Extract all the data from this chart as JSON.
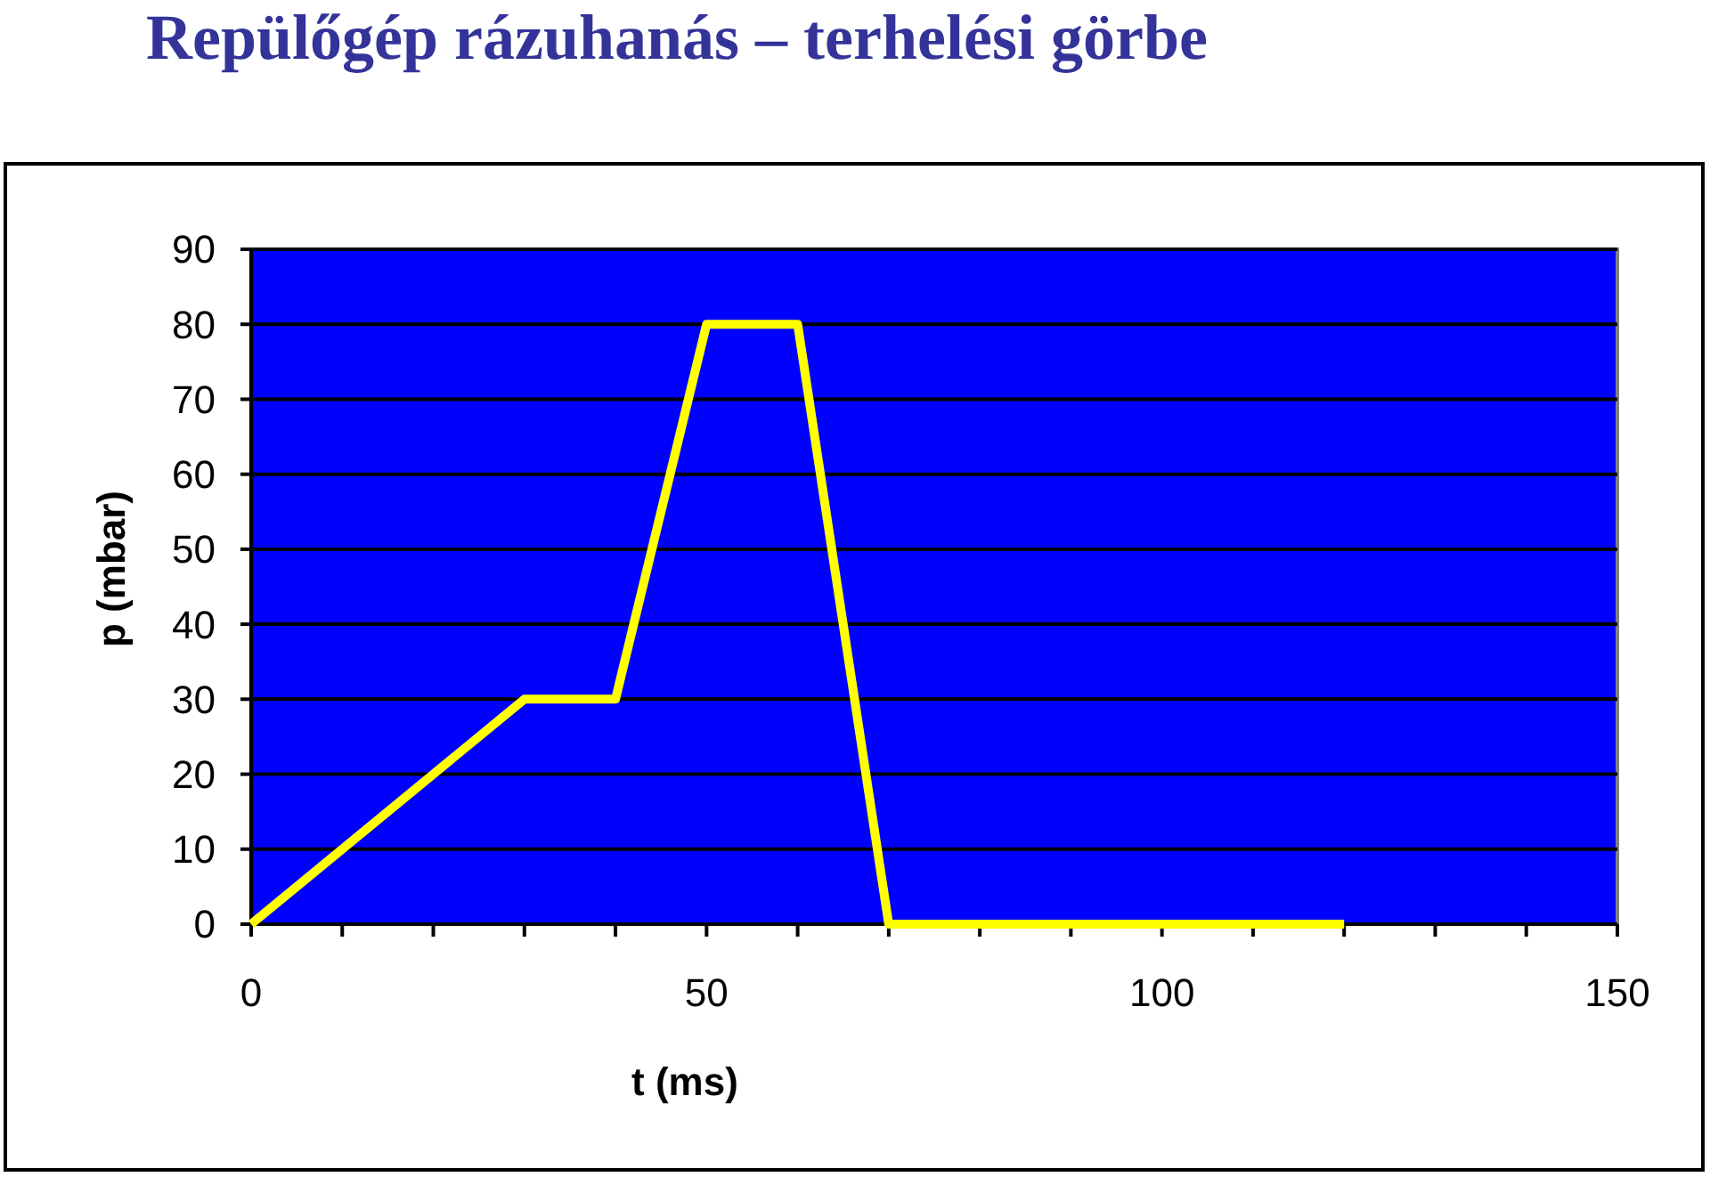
{
  "chart_data": {
    "type": "line",
    "title": "Repülőgép rázuhanás – terhelési görbe",
    "xlabel": "t (ms)",
    "ylabel": "p (mbar)",
    "x": [
      0,
      30,
      40,
      50,
      60,
      70,
      120
    ],
    "series": [
      {
        "color": "#ffff00",
        "values": [
          0,
          30,
          30,
          80,
          80,
          0,
          0
        ]
      }
    ],
    "xlim": [
      0,
      150
    ],
    "xticks": [
      0,
      {
        "value": 10,
        "label": null
      },
      {
        "value": 20,
        "label": null
      },
      {
        "value": 30,
        "label": null
      },
      {
        "value": 40,
        "label": null
      },
      50,
      {
        "value": 60,
        "label": null
      },
      {
        "value": 70,
        "label": null
      },
      {
        "value": 80,
        "label": null
      },
      {
        "value": 90,
        "label": null
      },
      100,
      {
        "value": 110,
        "label": null
      },
      {
        "value": 120,
        "label": null
      },
      {
        "value": 130,
        "label": null
      },
      {
        "value": 140,
        "label": null
      },
      150
    ],
    "ylim": [
      0,
      90
    ],
    "yticks": [
      0,
      10,
      20,
      30,
      40,
      50,
      60,
      70,
      80,
      90
    ],
    "grid": "y"
  }
}
